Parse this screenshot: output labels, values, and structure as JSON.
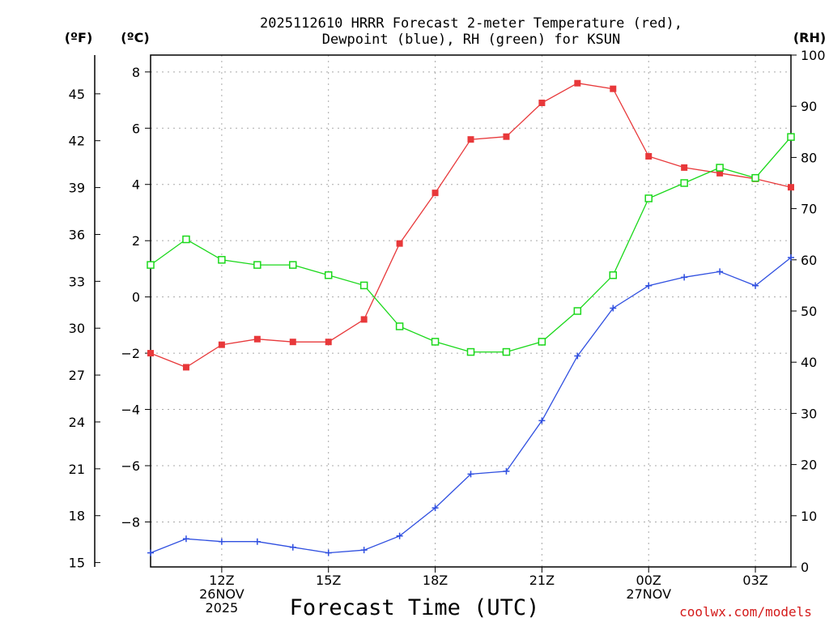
{
  "chart_data": {
    "type": "line",
    "title": [
      "2025112610 HRRR Forecast 2-meter Temperature (red),",
      "Dewpoint (blue), RH (green) for KSUN"
    ],
    "units": {
      "fahrenheit": "(ºF)",
      "celsius": "(ºC)",
      "rh": "(RH)"
    },
    "xlabel": "Forecast Time (UTC)",
    "credit": "coolwx.com/models",
    "x": [
      10,
      11,
      12,
      13,
      14,
      15,
      16,
      17,
      18,
      19,
      20,
      21,
      22,
      23,
      24,
      25,
      26,
      27,
      28
    ],
    "xlim": [
      10,
      28
    ],
    "x_ticks": [
      {
        "x": 12,
        "lines": [
          "12Z",
          "26NOV",
          "2025"
        ]
      },
      {
        "x": 15,
        "lines": [
          "15Z"
        ]
      },
      {
        "x": 18,
        "lines": [
          "18Z"
        ]
      },
      {
        "x": 21,
        "lines": [
          "21Z"
        ]
      },
      {
        "x": 24,
        "lines": [
          "00Z",
          "27NOV"
        ]
      },
      {
        "x": 27,
        "lines": [
          "03Z"
        ]
      }
    ],
    "y_celsius": {
      "lim": [
        -9.6,
        8.6
      ],
      "ticks": [
        -8,
        -6,
        -4,
        -2,
        0,
        2,
        4,
        6,
        8
      ]
    },
    "y_fahrenheit": {
      "ticks": [
        15,
        18,
        21,
        24,
        27,
        30,
        33,
        36,
        39,
        42,
        45
      ]
    },
    "y_rh": {
      "lim": [
        0,
        100
      ],
      "ticks": [
        0,
        10,
        20,
        30,
        40,
        50,
        60,
        70,
        80,
        90,
        100
      ]
    },
    "series": [
      {
        "name": "Temperature",
        "axis": "celsius",
        "color": "#e8383a",
        "marker": "filled-square",
        "values": [
          -2.0,
          -2.5,
          -1.7,
          -1.5,
          -1.6,
          -1.6,
          -0.8,
          1.9,
          3.7,
          5.6,
          5.7,
          6.9,
          7.6,
          7.4,
          5.0,
          4.6,
          4.4,
          4.2,
          3.9
        ]
      },
      {
        "name": "Dewpoint",
        "axis": "celsius",
        "color": "#2f4fe0",
        "marker": "plus",
        "values": [
          -9.1,
          -8.6,
          -8.7,
          -8.7,
          -8.9,
          -9.1,
          -9.0,
          -8.5,
          -7.5,
          -6.3,
          -6.2,
          -4.4,
          -2.1,
          -0.4,
          0.4,
          0.7,
          0.9,
          0.4,
          1.4
        ]
      },
      {
        "name": "RH",
        "axis": "rh",
        "color": "#1bd81b",
        "marker": "open-square",
        "values": [
          59,
          64,
          60,
          59,
          59,
          57,
          55,
          47,
          44,
          42,
          42,
          44,
          50,
          57,
          72,
          75,
          78,
          76,
          84
        ]
      }
    ]
  }
}
